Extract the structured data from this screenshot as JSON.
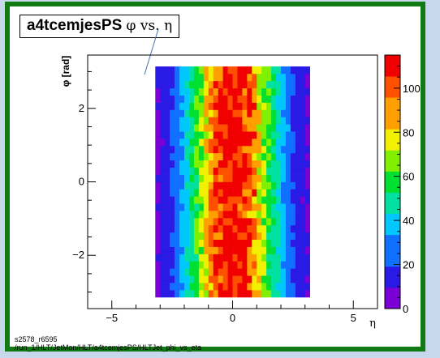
{
  "title": {
    "histogram_name": "a4tcemjesPS",
    "suffix": "φ vs. η"
  },
  "footer": {
    "line1": "s2578_r6595",
    "line2": "/run_1/HLT/JetMon/HLT/a4tcemjesPS/HLTJet_phi_vs_eta"
  },
  "chart_data": {
    "type": "heatmap",
    "xlabel": "η",
    "ylabel": "φ [rad]",
    "xlim": [
      -6,
      6
    ],
    "ylim": [
      -3.45,
      3.45
    ],
    "x_ticks": [
      "−5",
      "0",
      "5"
    ],
    "x_tick_values": [
      -5,
      0,
      5
    ],
    "y_ticks": [
      "−2",
      "0",
      "2"
    ],
    "y_tick_values": [
      -2,
      0,
      2
    ],
    "z_ticks": [
      "0",
      "20",
      "40",
      "60",
      "80",
      "100"
    ],
    "z_tick_values": [
      0,
      20,
      40,
      60,
      80,
      100
    ],
    "zlim": [
      0,
      115
    ],
    "eta_range": [
      -3.2,
      3.2
    ],
    "phi_range": [
      -3.14,
      3.14
    ],
    "eta_bins": 32,
    "phi_bins": 32,
    "peak_value": 110,
    "eta_profile_width": 1.3,
    "colormap": [
      "#7a00d6",
      "#2a1ae6",
      "#1070ff",
      "#00c8ff",
      "#00e0a0",
      "#00e030",
      "#80f000",
      "#f0f000",
      "#ffa000",
      "#ff5000",
      "#f00000"
    ],
    "grid": false,
    "legend": "colorbar-right"
  }
}
